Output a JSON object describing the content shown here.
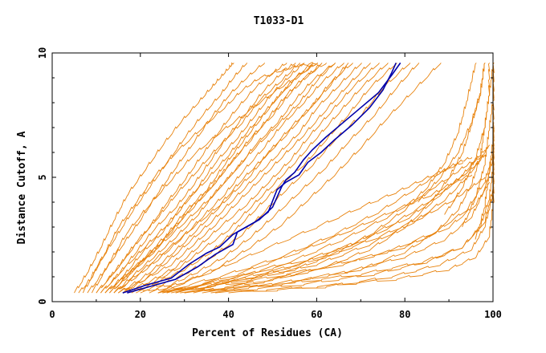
{
  "chart_data": {
    "type": "line",
    "title": "T1033-D1",
    "xlabel": "Percent of Residues (CA)",
    "ylabel": "Distance Cutoff, A",
    "xlim": [
      0,
      100
    ],
    "ylim": [
      0,
      10
    ],
    "x_ticks": [
      "0",
      "20",
      "40",
      "60",
      "80",
      "100"
    ],
    "y_ticks": [
      "0",
      "5",
      "10"
    ],
    "grid": false,
    "colors": {
      "models": "#e8820c",
      "highlight": "#0000aa",
      "axis": "#000000"
    },
    "highlight_series": [
      {
        "x": [
          17,
          22,
          28,
          33,
          37,
          41,
          42,
          44,
          47,
          50,
          52,
          53,
          55,
          57,
          59,
          62,
          66,
          70,
          74,
          77,
          79
        ],
        "y": [
          0.35,
          0.6,
          0.9,
          1.4,
          1.9,
          2.3,
          2.8,
          3.0,
          3.3,
          3.8,
          4.6,
          4.9,
          5.2,
          5.7,
          6.1,
          6.6,
          7.2,
          7.8,
          8.4,
          9.1,
          9.6
        ]
      },
      {
        "x": [
          16,
          21,
          27,
          31,
          35,
          38,
          41,
          43,
          46,
          49,
          51,
          53,
          56,
          58,
          61,
          64,
          68,
          72,
          75,
          77,
          78
        ],
        "y": [
          0.35,
          0.65,
          0.95,
          1.5,
          1.95,
          2.2,
          2.7,
          2.9,
          3.2,
          3.6,
          4.5,
          4.8,
          5.1,
          5.6,
          6.0,
          6.5,
          7.1,
          7.8,
          8.5,
          9.2,
          9.6
        ]
      }
    ],
    "model_series": [
      {
        "x": [
          6,
          9,
          12,
          15,
          19,
          23,
          28,
          34,
          39,
          43,
          47,
          52,
          56,
          60
        ],
        "y": [
          0.35,
          1.0,
          2.0,
          3.0,
          4.0,
          5.0,
          6.0,
          7.0,
          7.8,
          8.5,
          9.0,
          9.3,
          9.5,
          9.6
        ]
      },
      {
        "x": [
          5,
          8,
          11,
          14,
          17,
          21,
          25,
          29,
          33,
          36,
          38,
          40,
          41
        ],
        "y": [
          0.35,
          1.2,
          2.2,
          3.3,
          4.3,
          5.3,
          6.3,
          7.2,
          8.0,
          8.6,
          9.0,
          9.4,
          9.6
        ]
      },
      {
        "x": [
          7,
          10,
          14,
          18,
          22,
          26,
          30,
          34,
          38,
          41,
          44
        ],
        "y": [
          0.35,
          1.4,
          2.5,
          3.6,
          4.6,
          5.6,
          6.6,
          7.5,
          8.3,
          9.0,
          9.6
        ]
      },
      {
        "x": [
          8,
          12,
          16,
          20,
          24,
          28,
          32,
          36,
          40,
          44,
          48
        ],
        "y": [
          0.35,
          1.3,
          2.3,
          3.3,
          4.4,
          5.4,
          6.4,
          7.4,
          8.3,
          9.0,
          9.6
        ]
      },
      {
        "x": [
          10,
          14,
          18,
          22,
          26,
          30,
          34,
          38,
          42,
          46,
          50,
          53
        ],
        "y": [
          0.35,
          1.2,
          2.1,
          3.0,
          4.0,
          4.9,
          5.9,
          6.9,
          7.8,
          8.6,
          9.2,
          9.6
        ]
      },
      {
        "x": [
          11,
          15,
          19,
          23,
          28,
          32,
          36,
          40,
          44,
          48,
          52,
          55
        ],
        "y": [
          0.35,
          1.1,
          2.0,
          2.9,
          3.8,
          4.7,
          5.7,
          6.7,
          7.6,
          8.5,
          9.2,
          9.6
        ]
      },
      {
        "x": [
          12,
          16,
          20,
          25,
          29,
          33,
          37,
          42,
          46,
          50,
          54,
          57
        ],
        "y": [
          0.35,
          1.0,
          1.9,
          2.8,
          3.7,
          4.6,
          5.6,
          6.6,
          7.5,
          8.4,
          9.1,
          9.6
        ]
      },
      {
        "x": [
          13,
          17,
          21,
          26,
          30,
          35,
          39,
          43,
          47,
          51,
          55,
          59
        ],
        "y": [
          0.35,
          1.0,
          1.8,
          2.7,
          3.6,
          4.5,
          5.5,
          6.4,
          7.3,
          8.2,
          9.0,
          9.6
        ]
      },
      {
        "x": [
          12,
          17,
          22,
          27,
          31,
          36,
          40,
          45,
          49,
          53,
          57,
          62
        ],
        "y": [
          0.35,
          1.1,
          1.9,
          2.8,
          3.7,
          4.6,
          5.5,
          6.5,
          7.4,
          8.3,
          9.0,
          9.6
        ]
      },
      {
        "x": [
          14,
          18,
          23,
          28,
          33,
          37,
          42,
          46,
          51,
          55,
          59,
          64
        ],
        "y": [
          0.35,
          1.0,
          1.8,
          2.6,
          3.5,
          4.4,
          5.4,
          6.3,
          7.2,
          8.1,
          8.9,
          9.6
        ]
      },
      {
        "x": [
          14,
          19,
          24,
          29,
          34,
          39,
          43,
          48,
          52,
          57,
          61,
          66
        ],
        "y": [
          0.35,
          1.0,
          1.7,
          2.5,
          3.4,
          4.3,
          5.2,
          6.2,
          7.1,
          8.0,
          8.8,
          9.6
        ]
      },
      {
        "x": [
          15,
          20,
          25,
          30,
          35,
          40,
          45,
          49,
          54,
          59,
          63,
          68
        ],
        "y": [
          0.35,
          0.9,
          1.6,
          2.4,
          3.3,
          4.2,
          5.1,
          6.0,
          7.0,
          7.9,
          8.8,
          9.6
        ]
      },
      {
        "x": [
          13,
          18,
          23,
          27,
          32,
          37,
          41,
          45,
          50,
          54,
          58,
          61
        ],
        "y": [
          0.35,
          1.2,
          2.0,
          2.9,
          3.8,
          4.8,
          5.7,
          6.6,
          7.5,
          8.4,
          9.1,
          9.6
        ]
      },
      {
        "x": [
          15,
          21,
          26,
          31,
          36,
          41,
          46,
          51,
          56,
          60,
          65,
          70
        ],
        "y": [
          0.35,
          0.9,
          1.6,
          2.4,
          3.2,
          4.1,
          5.0,
          5.9,
          6.8,
          7.8,
          8.7,
          9.6
        ]
      },
      {
        "x": [
          16,
          21,
          27,
          32,
          37,
          42,
          47,
          52,
          57,
          62,
          67,
          72
        ],
        "y": [
          0.35,
          0.9,
          1.5,
          2.3,
          3.1,
          4.0,
          4.9,
          5.8,
          6.7,
          7.7,
          8.7,
          9.6
        ]
      },
      {
        "x": [
          11,
          16,
          21,
          26,
          30,
          35,
          40,
          44,
          48,
          52,
          56,
          60
        ],
        "y": [
          0.35,
          1.3,
          2.2,
          3.1,
          4.0,
          4.9,
          5.9,
          6.8,
          7.6,
          8.4,
          9.1,
          9.6
        ]
      },
      {
        "x": [
          16,
          22,
          28,
          33,
          38,
          44,
          49,
          54,
          58,
          63,
          68,
          74
        ],
        "y": [
          0.35,
          0.8,
          1.4,
          2.2,
          3.0,
          3.9,
          4.8,
          5.7,
          6.6,
          7.6,
          8.6,
          9.6
        ]
      },
      {
        "x": [
          9,
          13,
          17,
          22,
          27,
          32,
          38,
          44,
          50,
          55,
          60
        ],
        "y": [
          0.35,
          1.6,
          2.8,
          3.9,
          4.9,
          5.9,
          6.8,
          7.6,
          8.4,
          9.0,
          9.6
        ]
      },
      {
        "x": [
          17,
          23,
          29,
          34,
          40,
          45,
          50,
          55,
          60,
          65,
          70,
          76
        ],
        "y": [
          0.35,
          0.8,
          1.4,
          2.1,
          2.9,
          3.8,
          4.7,
          5.6,
          6.6,
          7.6,
          8.6,
          9.6
        ]
      },
      {
        "x": [
          18,
          24,
          30,
          36,
          41,
          46,
          51,
          57,
          62,
          67,
          72,
          78
        ],
        "y": [
          0.35,
          0.8,
          1.3,
          2.0,
          2.8,
          3.7,
          4.6,
          5.5,
          6.5,
          7.5,
          8.6,
          9.6
        ]
      },
      {
        "x": [
          10,
          15,
          19,
          24,
          28,
          33,
          38,
          43,
          47,
          52,
          56
        ],
        "y": [
          0.35,
          1.4,
          2.4,
          3.4,
          4.3,
          5.3,
          6.3,
          7.2,
          8.1,
          8.9,
          9.6
        ]
      },
      {
        "x": [
          19,
          25,
          31,
          37,
          43,
          48,
          53,
          59,
          64,
          70,
          75,
          81
        ],
        "y": [
          0.35,
          0.7,
          1.2,
          1.9,
          2.7,
          3.6,
          4.5,
          5.5,
          6.5,
          7.5,
          8.6,
          9.6
        ]
      },
      {
        "x": [
          20,
          27,
          33,
          39,
          45,
          50,
          56,
          62,
          67,
          73,
          78,
          83
        ],
        "y": [
          0.35,
          0.7,
          1.2,
          1.8,
          2.6,
          3.4,
          4.4,
          5.4,
          6.4,
          7.5,
          8.6,
          9.6
        ]
      },
      {
        "x": [
          22,
          30,
          38,
          45,
          52,
          58,
          64,
          70,
          76,
          82,
          88
        ],
        "y": [
          0.35,
          0.8,
          1.4,
          2.2,
          3.1,
          4.1,
          5.1,
          6.2,
          7.4,
          8.5,
          9.6
        ]
      },
      {
        "x": [
          12,
          18,
          24,
          30,
          36,
          41,
          46,
          51,
          56,
          60,
          64
        ],
        "y": [
          0.35,
          1.3,
          2.2,
          3.2,
          4.2,
          5.2,
          6.2,
          7.1,
          8.0,
          8.9,
          9.6
        ]
      },
      {
        "x": [
          14,
          20,
          26,
          32,
          38,
          43,
          48,
          53,
          58,
          63,
          67
        ],
        "y": [
          0.35,
          1.2,
          2.1,
          3.0,
          3.9,
          4.9,
          5.8,
          6.7,
          7.7,
          8.7,
          9.6
        ]
      },
      {
        "x": [
          24,
          40,
          55,
          65,
          73,
          80,
          85,
          89,
          92,
          94,
          96
        ],
        "y": [
          0.35,
          0.8,
          1.3,
          2.0,
          2.8,
          3.7,
          4.6,
          5.6,
          6.8,
          8.1,
          9.6
        ]
      },
      {
        "x": [
          30,
          48,
          62,
          72,
          80,
          86,
          90,
          93,
          95,
          97,
          98
        ],
        "y": [
          0.35,
          0.8,
          1.4,
          2.1,
          3.0,
          4.0,
          5.0,
          6.0,
          7.1,
          8.3,
          9.6
        ]
      },
      {
        "x": [
          34,
          55,
          70,
          80,
          87,
          92,
          95,
          97,
          98,
          99,
          99
        ],
        "y": [
          0.35,
          0.8,
          1.3,
          2.0,
          2.8,
          3.7,
          4.7,
          5.8,
          7.0,
          8.3,
          9.6
        ]
      },
      {
        "x": [
          24,
          38,
          52,
          64,
          74,
          82,
          88,
          92,
          95
        ],
        "y": [
          0.35,
          1.0,
          1.8,
          2.7,
          3.6,
          4.5,
          5.2,
          5.6,
          5.8
        ]
      },
      {
        "x": [
          26,
          40,
          54,
          66,
          76,
          84,
          90,
          94,
          97
        ],
        "y": [
          0.35,
          0.9,
          1.6,
          2.5,
          3.4,
          4.3,
          5.0,
          5.5,
          5.8
        ]
      },
      {
        "x": [
          28,
          42,
          56,
          68,
          78,
          86,
          92,
          96,
          98
        ],
        "y": [
          0.35,
          0.9,
          1.5,
          2.3,
          3.2,
          4.1,
          4.9,
          5.5,
          5.9
        ]
      },
      {
        "x": [
          25,
          42,
          58,
          71,
          81,
          88,
          93,
          96,
          98
        ],
        "y": [
          0.35,
          1.0,
          1.7,
          2.5,
          3.4,
          4.3,
          5.1,
          5.7,
          6.1
        ]
      },
      {
        "x": [
          27,
          45,
          60,
          72,
          82,
          89,
          94,
          97,
          99
        ],
        "y": [
          0.35,
          0.9,
          1.5,
          2.3,
          3.2,
          4.1,
          5.0,
          5.7,
          6.3
        ]
      },
      {
        "x": [
          25,
          44,
          62,
          76,
          87,
          94,
          98,
          100,
          100
        ],
        "y": [
          0.35,
          0.8,
          1.4,
          2.0,
          2.8,
          3.7,
          4.8,
          6.0,
          7.2
        ]
      },
      {
        "x": [
          29,
          50,
          67,
          80,
          89,
          95,
          98,
          100,
          100
        ],
        "y": [
          0.35,
          0.7,
          1.2,
          1.8,
          2.5,
          3.4,
          4.5,
          5.8,
          7.2
        ]
      },
      {
        "x": [
          36,
          57,
          73,
          85,
          93,
          97,
          99,
          100,
          100
        ],
        "y": [
          0.35,
          0.7,
          1.1,
          1.6,
          2.2,
          3.0,
          4.1,
          5.5,
          6.8
        ]
      },
      {
        "x": [
          40,
          62,
          77,
          88,
          95,
          98,
          100,
          100
        ],
        "y": [
          0.35,
          0.6,
          1.0,
          1.5,
          2.1,
          3.0,
          4.4,
          6.2
        ]
      },
      {
        "x": [
          26,
          42,
          56,
          68,
          78,
          86,
          91,
          95
        ],
        "y": [
          0.35,
          1.1,
          2.0,
          2.9,
          3.7,
          4.3,
          4.8,
          5.1
        ]
      },
      {
        "x": [
          28,
          46,
          62,
          74,
          84,
          91,
          95,
          98
        ],
        "y": [
          0.35,
          1.0,
          1.8,
          2.6,
          3.4,
          4.1,
          4.6,
          5.0
        ]
      },
      {
        "x": [
          24,
          36,
          48,
          60,
          70,
          78,
          84,
          89,
          93
        ],
        "y": [
          0.35,
          1.2,
          2.1,
          3.0,
          3.8,
          4.4,
          4.9,
          5.3,
          5.6
        ]
      },
      {
        "x": [
          37,
          60,
          78,
          90,
          96,
          99,
          100,
          100
        ],
        "y": [
          0.35,
          0.6,
          0.9,
          1.3,
          1.8,
          2.6,
          4.0,
          5.5
        ]
      },
      {
        "x": [
          30,
          52,
          70,
          84,
          93,
          98,
          100
        ],
        "y": [
          0.35,
          0.7,
          1.1,
          1.6,
          2.2,
          3.2,
          4.6
        ]
      },
      {
        "x": [
          32,
          50,
          66,
          80,
          90,
          96,
          99
        ],
        "y": [
          0.35,
          0.9,
          1.5,
          2.2,
          3.0,
          3.9,
          4.8
        ]
      },
      {
        "x": [
          83,
          88,
          92,
          95,
          97,
          98
        ],
        "y": [
          4.0,
          5.0,
          6.0,
          7.2,
          8.4,
          9.6
        ]
      },
      {
        "x": [
          89,
          93,
          96,
          98,
          99,
          100
        ],
        "y": [
          3.5,
          4.6,
          5.8,
          7.0,
          8.3,
          9.6
        ]
      },
      {
        "x": [
          93,
          96,
          98,
          99,
          100,
          100
        ],
        "y": [
          3.0,
          4.2,
          5.5,
          6.9,
          8.2,
          9.6
        ]
      },
      {
        "x": [
          96,
          98,
          99,
          100,
          100,
          100
        ],
        "y": [
          2.5,
          3.8,
          5.2,
          6.6,
          8.1,
          9.6
        ]
      }
    ]
  }
}
